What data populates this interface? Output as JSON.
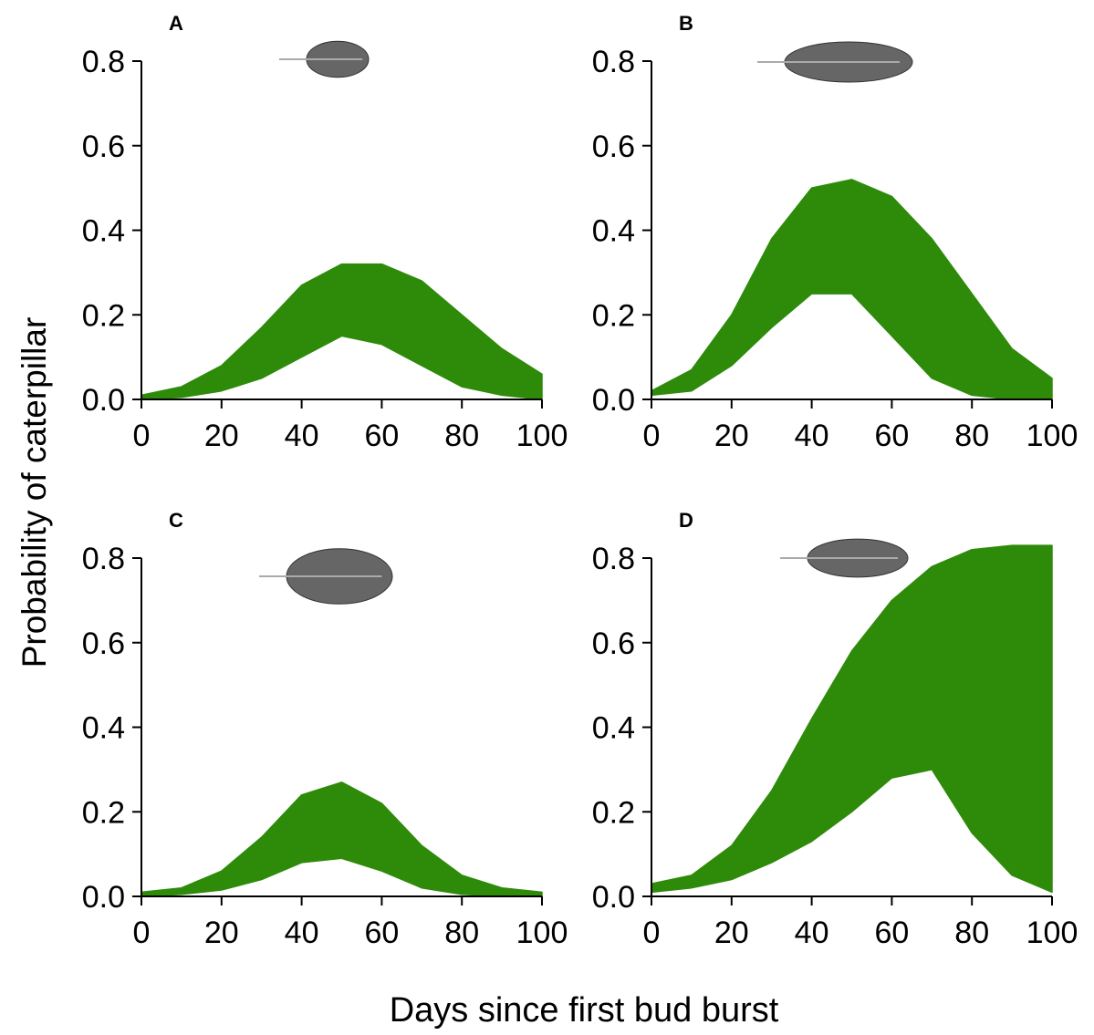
{
  "ylabel": "Probability of caterpillar",
  "xlabel": "Days since first bud burst",
  "chart_data": [
    {
      "type": "band",
      "label": "A",
      "color": "#2e8b0a",
      "x": [
        0,
        10,
        20,
        30,
        40,
        50,
        60,
        70,
        80,
        90,
        100
      ],
      "upper": [
        0.01,
        0.03,
        0.08,
        0.17,
        0.27,
        0.32,
        0.32,
        0.28,
        0.2,
        0.12,
        0.06
      ],
      "lower": [
        0,
        0.005,
        0.02,
        0.05,
        0.1,
        0.15,
        0.13,
        0.08,
        0.03,
        0.01,
        0
      ],
      "xlim": [
        0,
        100
      ],
      "ylim": [
        0,
        0.8
      ],
      "xticks": [
        0,
        20,
        40,
        60,
        80,
        100
      ],
      "yticks": [
        {
          "value": 0,
          "label": "0.0"
        },
        0.2,
        0.4,
        0.6,
        0.8
      ]
    },
    {
      "type": "band",
      "label": "B",
      "color": "#2e8b0a",
      "x": [
        0,
        10,
        20,
        30,
        40,
        50,
        60,
        70,
        80,
        90,
        100
      ],
      "upper": [
        0.02,
        0.07,
        0.2,
        0.38,
        0.5,
        0.52,
        0.48,
        0.38,
        0.25,
        0.12,
        0.05
      ],
      "lower": [
        0.01,
        0.02,
        0.08,
        0.17,
        0.25,
        0.25,
        0.15,
        0.05,
        0.01,
        0,
        0
      ],
      "xlim": [
        0,
        100
      ],
      "ylim": [
        0,
        0.8
      ],
      "xticks": [
        0,
        20,
        40,
        60,
        80,
        100
      ],
      "yticks": [
        {
          "value": 0,
          "label": "0.0"
        },
        0.2,
        0.4,
        0.6,
        0.8
      ]
    },
    {
      "type": "band",
      "label": "C",
      "color": "#2e8b0a",
      "x": [
        0,
        10,
        20,
        30,
        40,
        50,
        60,
        70,
        80,
        90,
        100
      ],
      "upper": [
        0.01,
        0.02,
        0.06,
        0.14,
        0.24,
        0.27,
        0.22,
        0.12,
        0.05,
        0.02,
        0.01
      ],
      "lower": [
        0,
        0.005,
        0.015,
        0.04,
        0.08,
        0.09,
        0.06,
        0.02,
        0.005,
        0,
        0
      ],
      "xlim": [
        0,
        100
      ],
      "ylim": [
        0,
        0.8
      ],
      "xticks": [
        0,
        20,
        40,
        60,
        80,
        100
      ],
      "yticks": [
        {
          "value": 0,
          "label": "0.0"
        },
        0.2,
        0.4,
        0.6,
        0.8
      ]
    },
    {
      "type": "band",
      "label": "D",
      "color": "#2e8b0a",
      "x": [
        0,
        10,
        20,
        30,
        40,
        50,
        60,
        70,
        80,
        90,
        100
      ],
      "upper": [
        0.03,
        0.05,
        0.12,
        0.25,
        0.42,
        0.58,
        0.7,
        0.78,
        0.82,
        0.83,
        0.83
      ],
      "lower": [
        0.01,
        0.02,
        0.04,
        0.08,
        0.13,
        0.2,
        0.28,
        0.3,
        0.15,
        0.05,
        0.01
      ],
      "xlim": [
        0,
        100
      ],
      "ylim": [
        0,
        0.8
      ],
      "xticks": [
        0,
        20,
        40,
        60,
        80,
        100
      ],
      "yticks": [
        {
          "value": 0,
          "label": "0.0"
        },
        0.2,
        0.4,
        0.6,
        0.8
      ]
    }
  ]
}
